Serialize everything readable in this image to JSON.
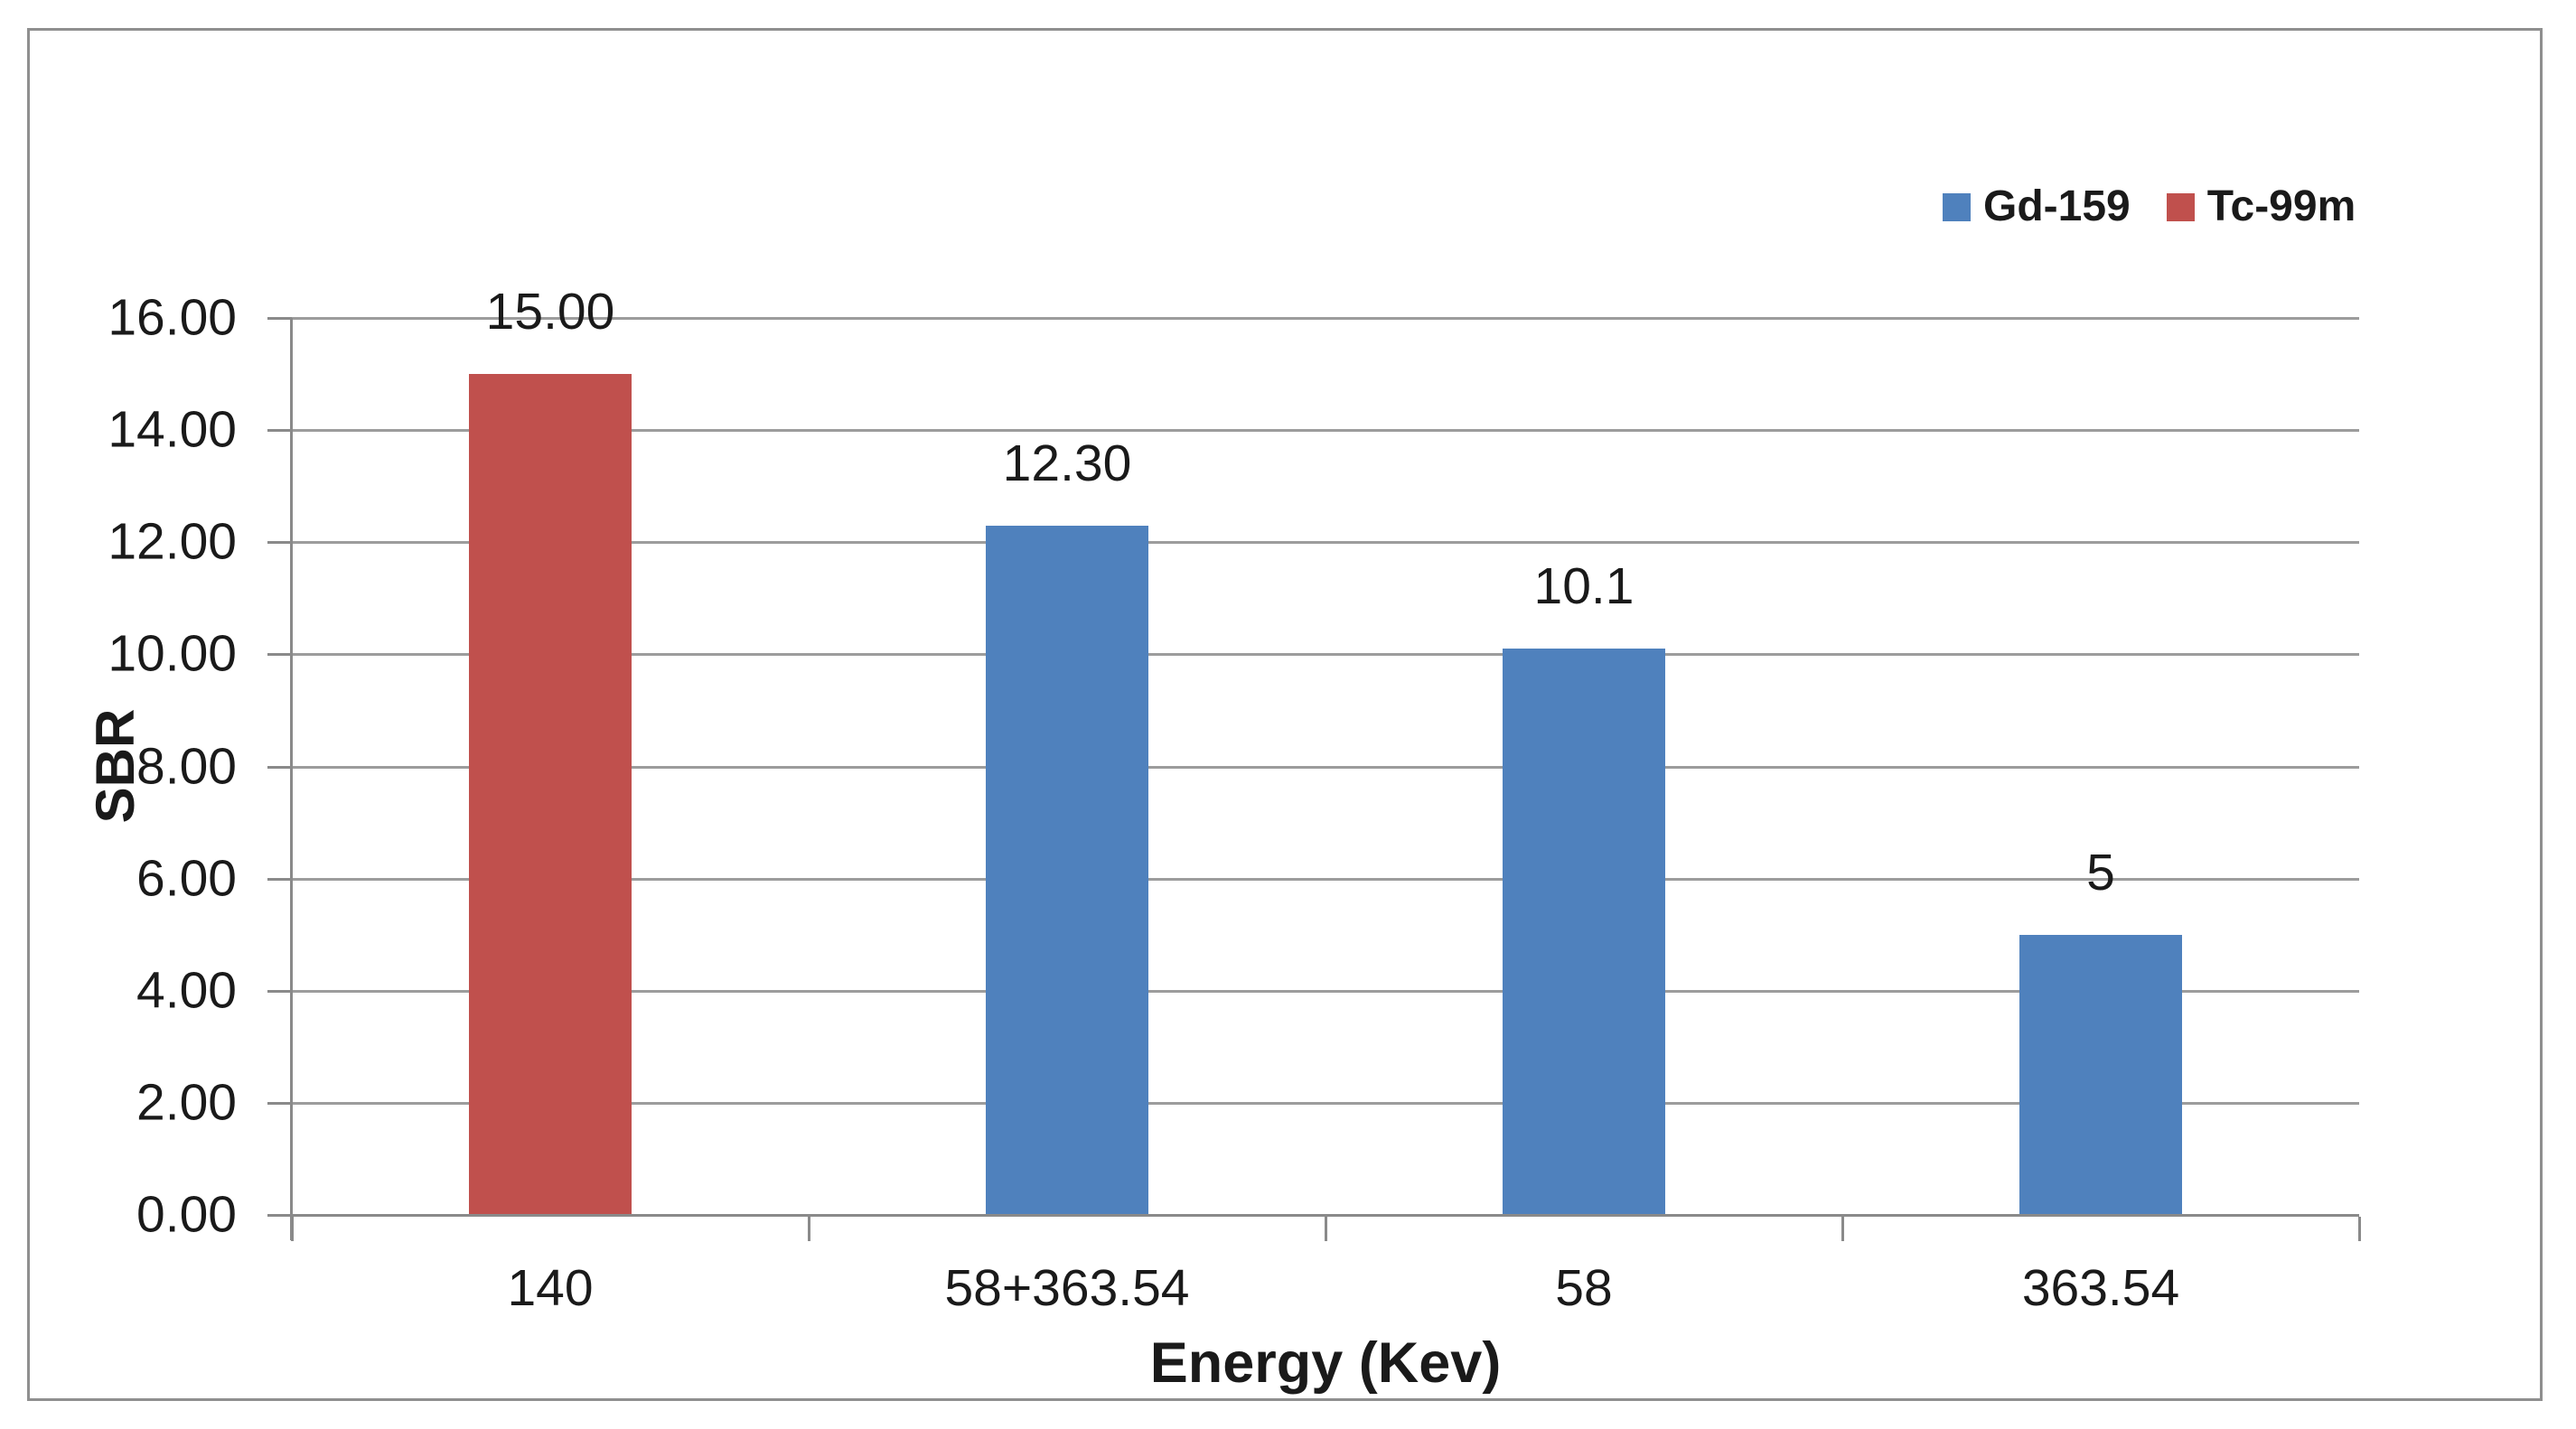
{
  "chart_data": {
    "type": "bar",
    "title": "",
    "xlabel": "Energy (Kev)",
    "ylabel": "SBR",
    "categories": [
      "140",
      "58+363.54",
      "58",
      "363.54"
    ],
    "points": [
      {
        "category": "140",
        "value": 15.0,
        "label": "15.00",
        "series": "Tc-99m"
      },
      {
        "category": "58+363.54",
        "value": 12.3,
        "label": "12.30",
        "series": "Gd-159"
      },
      {
        "category": "58",
        "value": 10.1,
        "label": "10.1",
        "series": "Gd-159"
      },
      {
        "category": "363.54",
        "value": 5.0,
        "label": "5",
        "series": "Gd-159"
      }
    ],
    "series": [
      {
        "name": "Gd-159",
        "color": "#4F81BD",
        "values": [
          null,
          12.3,
          10.1,
          5.0
        ]
      },
      {
        "name": "Tc-99m",
        "color": "#C0504D",
        "values": [
          15.0,
          null,
          null,
          null
        ]
      }
    ],
    "y_axis": {
      "min": 0,
      "max": 16,
      "step": 2,
      "tick_labels": [
        "0.00",
        "2.00",
        "4.00",
        "6.00",
        "8.00",
        "10.00",
        "12.00",
        "14.00",
        "16.00"
      ]
    },
    "legend": {
      "position": "top-right",
      "entries": [
        {
          "label": "Gd-159",
          "color": "#4F81BD"
        },
        {
          "label": "Tc-99m",
          "color": "#C0504D"
        }
      ]
    },
    "grid": true,
    "colors": {
      "gridline": "#9C9C9C",
      "axis": "#8A8A8A",
      "frame_border": "#8F8F8F",
      "text": "#1A1A1A",
      "background": "#FFFFFF"
    }
  }
}
